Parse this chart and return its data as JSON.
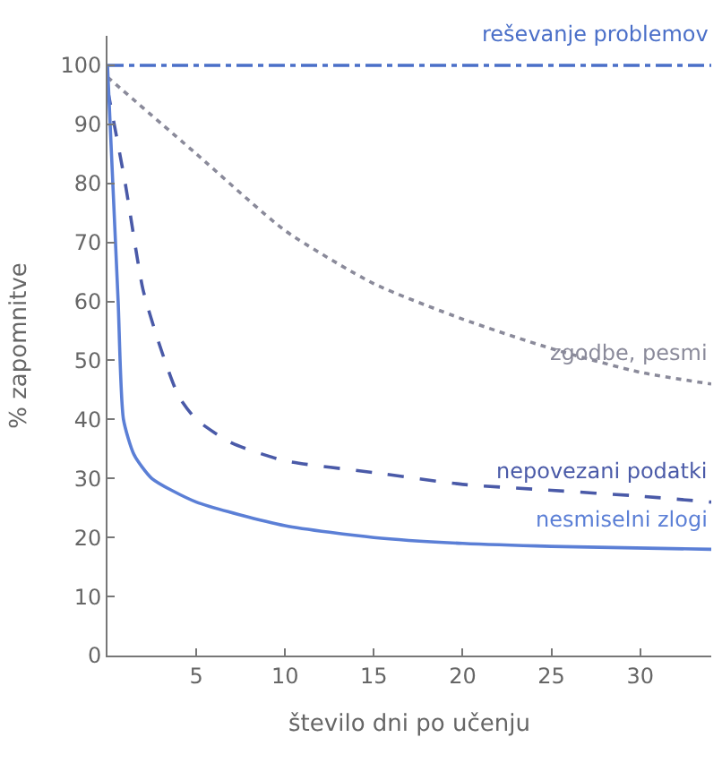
{
  "chart_data": {
    "type": "line",
    "ylabel": "% zapomnitve",
    "xlabel": "število dni po učenju",
    "xlim": [
      0,
      34
    ],
    "ylim": [
      0,
      105
    ],
    "xticks": [
      5,
      10,
      15,
      20,
      25,
      30
    ],
    "yticks": [
      0,
      10,
      20,
      30,
      40,
      50,
      60,
      70,
      80,
      90,
      100
    ],
    "legend": false,
    "marker": "none",
    "series": [
      {
        "name": "reševanje problemov",
        "color": "#4a6fc8",
        "line_style": "dashdot",
        "x": [
          0,
          34
        ],
        "values": [
          100,
          100
        ]
      },
      {
        "name": "zgodbe, pesmi",
        "color": "#8a8a9a",
        "line_style": "dotted",
        "x": [
          0,
          5,
          10,
          15,
          20,
          25,
          30,
          34
        ],
        "values": [
          98,
          85,
          72,
          63,
          57,
          52,
          48,
          46
        ]
      },
      {
        "name": "nepovezani podatki",
        "color": "#4a5aa8",
        "line_style": "dashed",
        "x": [
          0,
          1,
          2,
          3,
          4,
          5,
          7,
          10,
          15,
          20,
          25,
          30,
          34
        ],
        "values": [
          96,
          80,
          62,
          52,
          44,
          40,
          36,
          33,
          31,
          29,
          28,
          27,
          26
        ]
      },
      {
        "name": "nesmiselni zlogi",
        "color": "#5b7fd6",
        "line_style": "solid",
        "x": [
          0,
          0.3,
          0.6,
          0.9,
          1.5,
          2.5,
          5,
          10,
          15,
          20,
          25,
          34
        ],
        "values": [
          100,
          80,
          60,
          40,
          34,
          30,
          26,
          22,
          20,
          19,
          18.5,
          18
        ]
      }
    ]
  }
}
